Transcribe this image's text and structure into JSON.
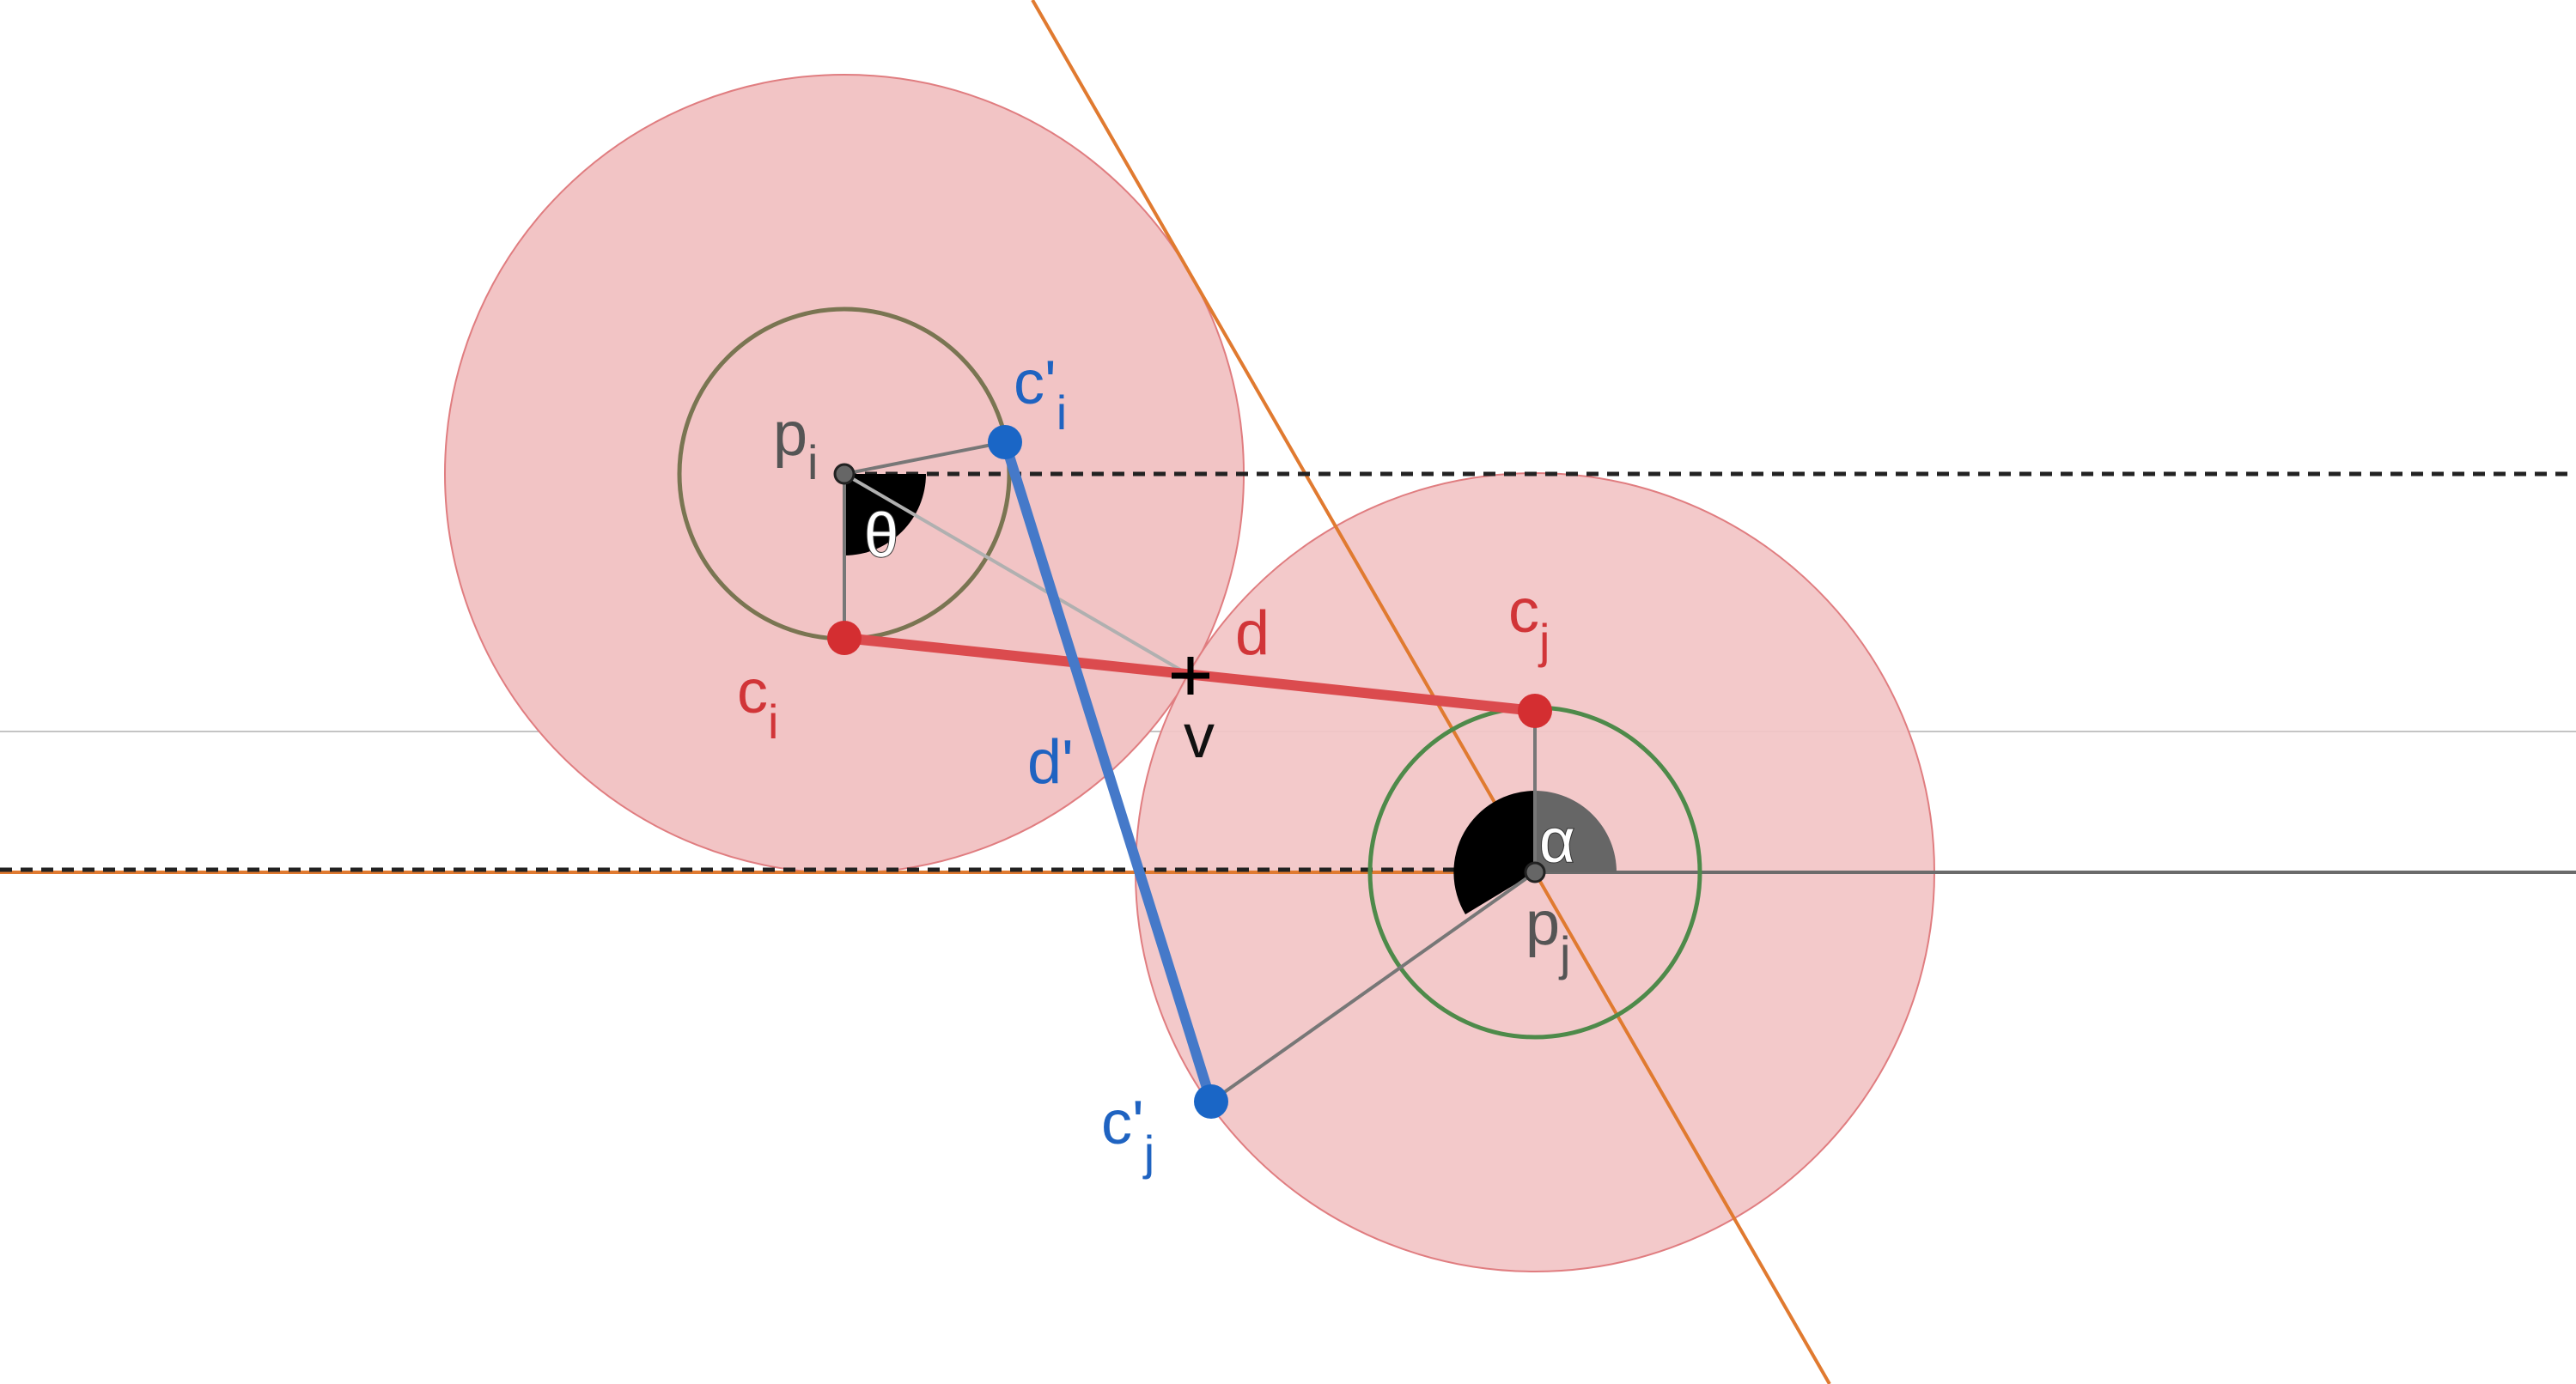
{
  "labels": {
    "p_i": {
      "base": "p",
      "sub": "i"
    },
    "p_j": {
      "base": "p",
      "sub": "j"
    },
    "c_i": {
      "base": "c",
      "sub": "i"
    },
    "c_j": {
      "base": "c",
      "sub": "j"
    },
    "c_prime_i": {
      "base": "c'",
      "sub": "i"
    },
    "c_prime_j": {
      "base": "c'",
      "sub": "j"
    },
    "theta": "θ",
    "alpha": "α",
    "d": "d",
    "d_prime": "d'",
    "v": "v"
  },
  "colors": {
    "background": "#ffffff",
    "big_circle_fill": "#f2c4c5",
    "big_circle_stroke": "#e07d80",
    "small_circle_i": "#7a7552",
    "small_circle_j": "#4e8a4a",
    "orange_line": "#e07a30",
    "red_segment": "#db4b4e",
    "red_point": "#d42e31",
    "blue_segment": "#4579c9",
    "blue_point": "#1a66c6",
    "dashed_line": "#222222",
    "gray_line": "#777777",
    "thin_gray_line": "#bdbdbd",
    "angle_dark": "#000000",
    "angle_gray": "#666666"
  }
}
